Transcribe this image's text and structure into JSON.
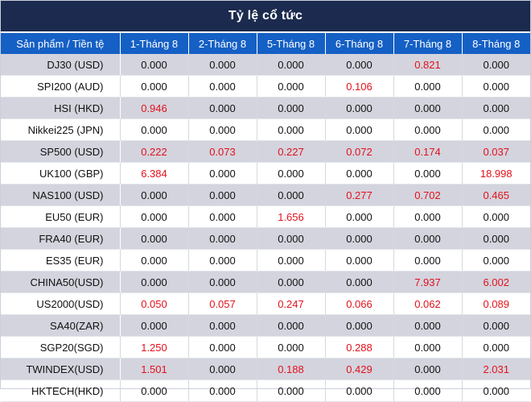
{
  "title": "Tỷ lệ cổ tức",
  "columns": [
    "Sản phẩm / Tiền tệ",
    "1-Tháng 8",
    "2-Tháng 8",
    "5-Tháng 8",
    "6-Tháng 8",
    "7-Tháng 8",
    "8-Tháng 8"
  ],
  "rows": [
    {
      "product": "DJ30 (USD)",
      "values": [
        "0.000",
        "0.000",
        "0.000",
        "0.000",
        "0.821",
        "0.000"
      ]
    },
    {
      "product": "SPI200 (AUD)",
      "values": [
        "0.000",
        "0.000",
        "0.000",
        "0.106",
        "0.000",
        "0.000"
      ]
    },
    {
      "product": "HSI (HKD)",
      "values": [
        "0.946",
        "0.000",
        "0.000",
        "0.000",
        "0.000",
        "0.000"
      ]
    },
    {
      "product": "Nikkei225 (JPN)",
      "values": [
        "0.000",
        "0.000",
        "0.000",
        "0.000",
        "0.000",
        "0.000"
      ]
    },
    {
      "product": "SP500 (USD)",
      "values": [
        "0.222",
        "0.073",
        "0.227",
        "0.072",
        "0.174",
        "0.037"
      ]
    },
    {
      "product": "UK100 (GBP)",
      "values": [
        "6.384",
        "0.000",
        "0.000",
        "0.000",
        "0.000",
        "18.998"
      ]
    },
    {
      "product": "NAS100 (USD)",
      "values": [
        "0.000",
        "0.000",
        "0.000",
        "0.277",
        "0.702",
        "0.465"
      ]
    },
    {
      "product": "EU50 (EUR)",
      "values": [
        "0.000",
        "0.000",
        "1.656",
        "0.000",
        "0.000",
        "0.000"
      ]
    },
    {
      "product": "FRA40 (EUR)",
      "values": [
        "0.000",
        "0.000",
        "0.000",
        "0.000",
        "0.000",
        "0.000"
      ]
    },
    {
      "product": "ES35 (EUR)",
      "values": [
        "0.000",
        "0.000",
        "0.000",
        "0.000",
        "0.000",
        "0.000"
      ]
    },
    {
      "product": "CHINA50(USD)",
      "values": [
        "0.000",
        "0.000",
        "0.000",
        "0.000",
        "7.937",
        "6.002"
      ]
    },
    {
      "product": "US2000(USD)",
      "values": [
        "0.050",
        "0.057",
        "0.247",
        "0.066",
        "0.062",
        "0.089"
      ]
    },
    {
      "product": "SA40(ZAR)",
      "values": [
        "0.000",
        "0.000",
        "0.000",
        "0.000",
        "0.000",
        "0.000"
      ]
    },
    {
      "product": "SGP20(SGD)",
      "values": [
        "1.250",
        "0.000",
        "0.000",
        "0.288",
        "0.000",
        "0.000"
      ]
    },
    {
      "product": "TWINDEX(USD)",
      "values": [
        "1.501",
        "0.000",
        "0.188",
        "0.429",
        "0.000",
        "2.031"
      ]
    },
    {
      "product": "HKTECH(HKD)",
      "values": [
        "0.000",
        "0.000",
        "0.000",
        "0.000",
        "0.000",
        "0.000"
      ]
    }
  ],
  "colors": {
    "title_bg": "#1b2a4e",
    "header_bg": "#1560c5",
    "alt_row_bg": "#d4d4de",
    "positive_value": "#e3111b"
  }
}
